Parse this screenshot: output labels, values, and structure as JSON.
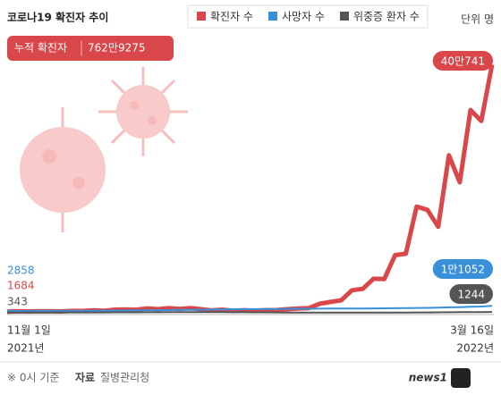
{
  "chart_data": {
    "type": "line",
    "title": "코로나19 확진자 추이",
    "cumulative_label": "누적 확진자",
    "cumulative_value": "762만9275",
    "unit_label": "단위 명",
    "categories": [
      "11월 1일",
      null,
      null,
      null,
      null,
      null,
      null,
      null,
      null,
      null,
      null,
      null,
      null,
      null,
      null,
      null,
      null,
      null,
      null,
      null,
      null,
      null,
      null,
      null,
      null,
      null,
      null,
      null,
      null,
      null,
      null,
      null,
      null,
      null,
      null,
      null,
      null,
      null,
      null,
      null,
      null,
      null,
      null,
      null,
      null,
      "3월 16일"
    ],
    "start_year": "2021년",
    "end_year": "2022년",
    "ylim": [
      0,
      420000
    ],
    "series": [
      {
        "name": "확진자 수",
        "color": "#d9474a",
        "values": [
          1684,
          2667,
          2224,
          2425,
          2419,
          2125,
          3034,
          2827,
          3938,
          3309,
          5123,
          5352,
          4954,
          7022,
          5817,
          7622,
          6236,
          7456,
          5842,
          3865,
          5035,
          3022,
          4126,
          3376,
          4385,
          4418,
          5804,
          6767,
          7513,
          14518,
          17529,
          20270,
          36345,
          38691,
          54941,
          54619,
          93135,
          95362,
          171452,
          166209,
          138993,
          254327,
          210716,
          327549,
          309790,
          400741
        ],
        "end_label": "40만741"
      },
      {
        "name": "사망자 수",
        "color": "#3a8fd9",
        "values": [
          2858,
          2893,
          2930,
          2968,
          3012,
          3073,
          3137,
          3202,
          3301,
          3401,
          3580,
          3705,
          3852,
          4020,
          4206,
          4372,
          4591,
          4776,
          4955,
          5150,
          5382,
          5625,
          5781,
          5987,
          6141,
          6259,
          6333,
          6452,
          6540,
          6654,
          6721,
          6787,
          6873,
          6963,
          7133,
          7259,
          7405,
          7537,
          7730,
          7895,
          8266,
          8796,
          9096,
          9646,
          10140,
          11052
        ],
        "end_label": "1만1052"
      },
      {
        "name": "위중증 환자 수",
        "color": "#555555",
        "values": [
          343,
          364,
          425,
          460,
          485,
          522,
          508,
          515,
          647,
          647,
          723,
          752,
          774,
          852,
          906,
          989,
          1025,
          1063,
          1084,
          1151,
          1015,
          882,
          838,
          761,
          659,
          549,
          479,
          433,
          385,
          316,
          272,
          278,
          269,
          274,
          313,
          389,
          439,
          480,
          512,
          643,
          762,
          896,
          955,
          1113,
          1158,
          1244
        ]
      }
    ],
    "footnote": "※ 0시 기준",
    "source_label": "자료",
    "source": "질병관리청",
    "logo": "news1"
  }
}
